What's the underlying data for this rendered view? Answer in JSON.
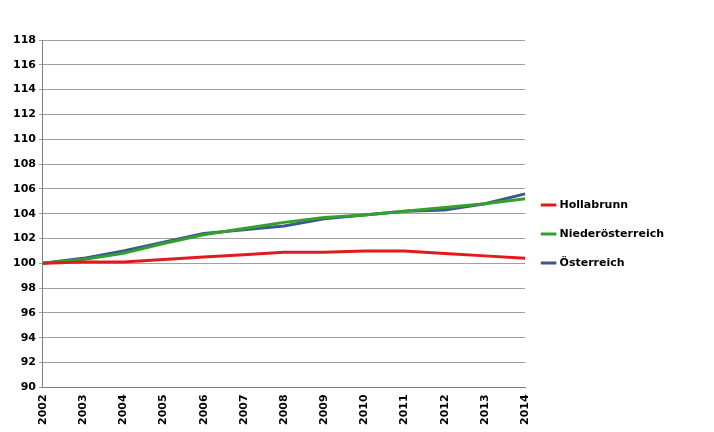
{
  "chart_data": {
    "type": "line",
    "categories": [
      "2002",
      "2003",
      "2004",
      "2005",
      "2006",
      "2007",
      "2008",
      "2009",
      "2010",
      "2011",
      "2012",
      "2013",
      "2014"
    ],
    "series": [
      {
        "name": "Hollabrunn",
        "color": "#e31a1c",
        "values": [
          100,
          100.1,
          100.1,
          100.3,
          100.5,
          100.7,
          100.9,
          100.9,
          101.0,
          101.0,
          100.8,
          100.6,
          100.4
        ]
      },
      {
        "name": "Niederösterreich",
        "color": "#33a02c",
        "values": [
          100,
          100.3,
          100.8,
          101.6,
          102.3,
          102.8,
          103.3,
          103.7,
          103.9,
          104.2,
          104.5,
          104.8,
          105.2
        ]
      },
      {
        "name": "Österreich",
        "color": "#3a5a8c",
        "values": [
          100,
          100.4,
          101.0,
          101.7,
          102.4,
          102.7,
          103.0,
          103.6,
          103.9,
          104.2,
          104.3,
          104.8,
          105.6
        ]
      }
    ],
    "ylim": [
      90,
      118
    ],
    "yticks": [
      90,
      92,
      94,
      96,
      98,
      100,
      102,
      104,
      106,
      108,
      110,
      112,
      114,
      116,
      118
    ],
    "grid": true,
    "legend": "right"
  }
}
